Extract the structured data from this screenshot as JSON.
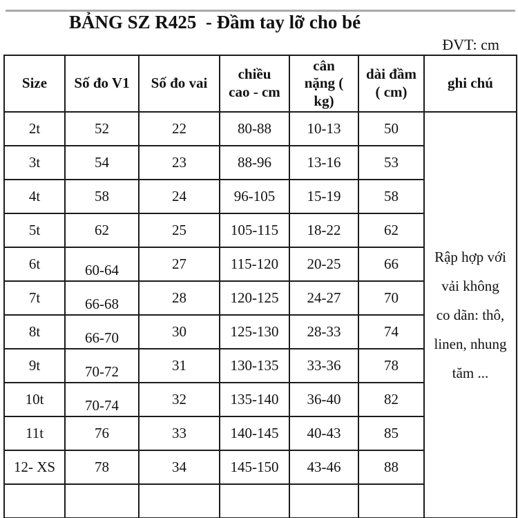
{
  "title": "BẢNG SZ R425  - Đầm tay lỡ cho bé",
  "unit_label": "ĐVT: cm",
  "table": {
    "headers": [
      {
        "lines": [
          "Size"
        ]
      },
      {
        "lines": [
          "Số đo V1"
        ]
      },
      {
        "lines": [
          "Số đo vai"
        ]
      },
      {
        "lines": [
          "chiều",
          "cao - cm"
        ]
      },
      {
        "lines": [
          "cân",
          "nặng (",
          "kg)"
        ]
      },
      {
        "lines": [
          "dài đầm",
          "( cm)"
        ]
      },
      {
        "lines": [
          "ghi chú"
        ]
      }
    ],
    "rows": [
      [
        "2t",
        "52",
        "22",
        "80-88",
        "10-13",
        "50"
      ],
      [
        "3t",
        "54",
        "23",
        "88-96",
        "13-16",
        "53"
      ],
      [
        "4t",
        "58",
        "24",
        "96-105",
        "15-19",
        "58"
      ],
      [
        "5t",
        "62",
        "25",
        "105-115",
        "18-22",
        "62"
      ],
      [
        "6t",
        "60-64",
        "27",
        "115-120",
        "20-25",
        "66"
      ],
      [
        "7t",
        "66-68",
        "28",
        "120-125",
        "24-27",
        "70"
      ],
      [
        "8t",
        "66-70",
        "30",
        "125-130",
        "28-33",
        "74"
      ],
      [
        "9t",
        "70-72",
        "31",
        "130-135",
        "33-36",
        "78"
      ],
      [
        "10t",
        "70-74",
        "32",
        "135-140",
        "36-40",
        "82"
      ],
      [
        "11t",
        "76",
        "33",
        "140-145",
        "40-43",
        "85"
      ],
      [
        "12- XS",
        "78",
        "34",
        "145-150",
        "43-46",
        "88"
      ]
    ],
    "note_lines": [
      "Rập hợp với",
      "vải không",
      "co dãn: thô,",
      "linen, nhung",
      "tăm ..."
    ]
  }
}
